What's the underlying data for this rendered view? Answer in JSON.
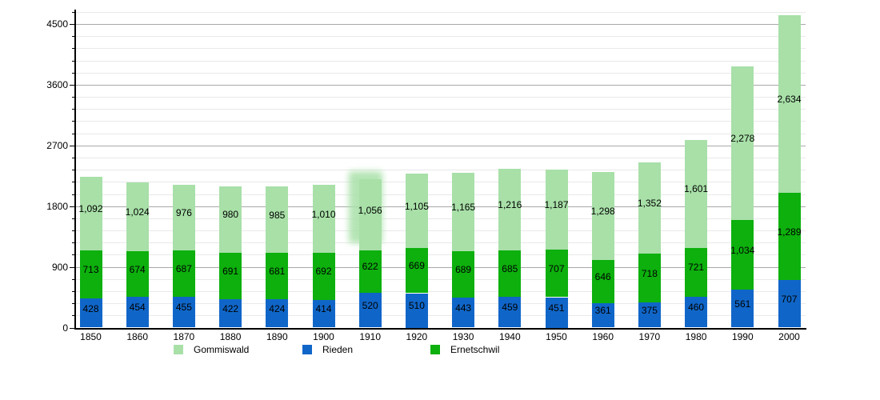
{
  "chart_data": {
    "type": "bar",
    "stacked": true,
    "title": "",
    "categories": [
      "1850",
      "1860",
      "1870",
      "1880",
      "1890",
      "1900",
      "1910",
      "1920",
      "1930",
      "1940",
      "1950",
      "1960",
      "1970",
      "1980",
      "1990",
      "2000"
    ],
    "series": [
      {
        "name": "Rieden",
        "color": "#1066c8",
        "values": [
          428,
          454,
          455,
          422,
          424,
          414,
          520,
          510,
          443,
          459,
          451,
          361,
          375,
          460,
          561,
          707
        ]
      },
      {
        "name": "Ernetschwil",
        "color": "#0db00d",
        "values": [
          713,
          674,
          687,
          691,
          681,
          692,
          622,
          669,
          689,
          685,
          707,
          646,
          718,
          721,
          1034,
          1289
        ]
      },
      {
        "name": "Gommiswald",
        "color": "#a8e0a8",
        "values": [
          1092,
          1024,
          976,
          980,
          985,
          1010,
          1056,
          1105,
          1165,
          1216,
          1187,
          1298,
          1352,
          1601,
          2278,
          2634
        ]
      }
    ],
    "legend": [
      {
        "label": "Gommiswald",
        "color": "#a8e0a8"
      },
      {
        "label": "Rieden",
        "color": "#1066c8"
      },
      {
        "label": "Ernetschwil",
        "color": "#0db00d"
      }
    ],
    "legend_position": "bottom",
    "grid": true,
    "y_axis": {
      "tick_labels": [
        "0",
        "900",
        "1800",
        "2700",
        "3600",
        "4500"
      ],
      "major_ticks": [
        0,
        900,
        1800,
        2700,
        3600,
        4500
      ],
      "minor_step": 180,
      "minor_max": 4680,
      "major_grid_color": "#a9a9a9",
      "minor_grid_color": "#e9e9e9"
    },
    "ylim": [
      0,
      4680
    ],
    "xlabel": "",
    "ylabel": ""
  }
}
